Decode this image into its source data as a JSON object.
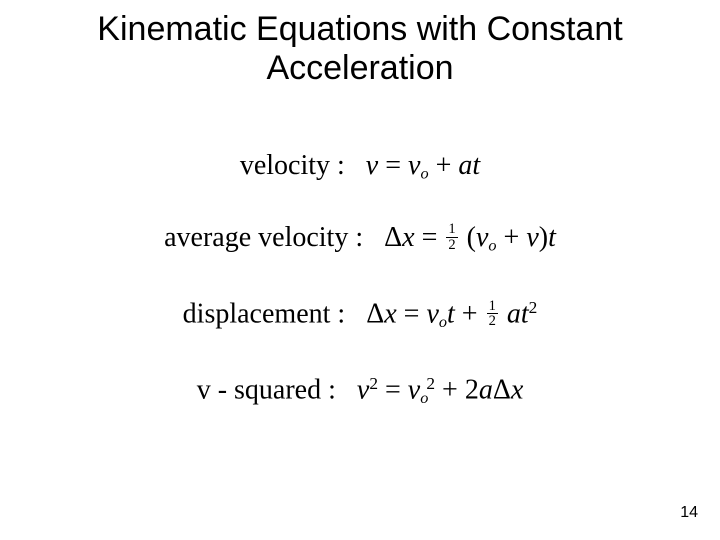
{
  "slide": {
    "title": "Kinematic Equations with Constant Acceleration",
    "page_number": "14",
    "background_color": "#ffffff",
    "text_color": "#000000",
    "title_font": {
      "family": "Arial",
      "size_pt": 34,
      "weight": "normal"
    },
    "equation_font": {
      "family": "Times New Roman",
      "size_pt": 28,
      "style": "italic-math"
    }
  },
  "equations": [
    {
      "label": "velocity :",
      "lhs": "v",
      "rhs_parts": [
        "v_o",
        "+",
        "a",
        "t"
      ],
      "display": "v = v_o + at"
    },
    {
      "label": "average velocity :",
      "lhs": "Δx",
      "rhs_parts": [
        "1/2",
        "(",
        "v_o",
        "+",
        "v",
        ")",
        "t"
      ],
      "display": "Δx = ½ (v_o + v) t"
    },
    {
      "label": "displacement :",
      "lhs": "Δx",
      "rhs_parts": [
        "v_o",
        "t",
        "+",
        "1/2",
        "a",
        "t^2"
      ],
      "display": "Δx = v_o t + ½ a t²"
    },
    {
      "label": "v - squared :",
      "lhs": "v^2",
      "rhs_parts": [
        "v_o^2",
        "+",
        "2",
        "a",
        "Δx"
      ],
      "display": "v² = v_o² + 2aΔx"
    }
  ]
}
